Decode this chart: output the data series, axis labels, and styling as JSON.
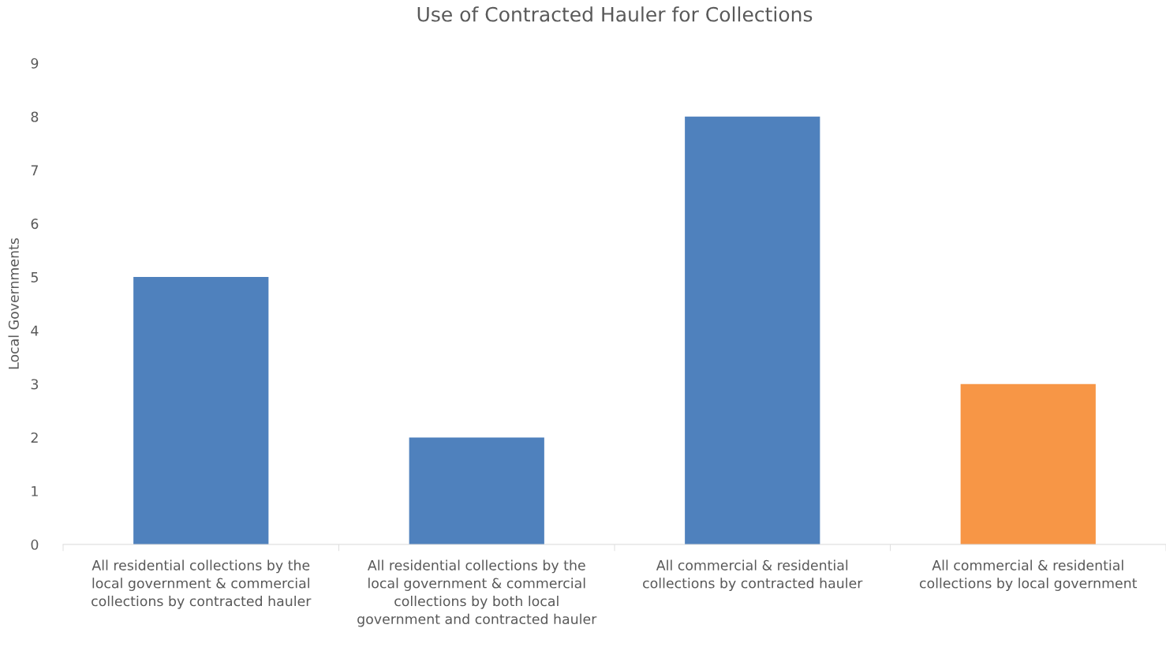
{
  "chart_data": {
    "type": "bar",
    "title": "Use of Contracted Hauler for Collections",
    "ylabel": "Local Governments",
    "categories": [
      "All residential collections by the local government & commercial collections by contracted hauler",
      "All residential collections by the local government & commercial collections by both local government and contracted hauler",
      "All commercial & residential collections by contracted hauler",
      "All commercial & residential collections by local government"
    ],
    "values": [
      5,
      2,
      8,
      3
    ],
    "colors": [
      "#4f81bd",
      "#4f81bd",
      "#4f81bd",
      "#f79646"
    ],
    "ylim": [
      0,
      9
    ],
    "yticks": [
      0,
      1,
      2,
      3,
      4,
      5,
      6,
      7,
      8,
      9
    ],
    "grid": false,
    "legend": false
  }
}
